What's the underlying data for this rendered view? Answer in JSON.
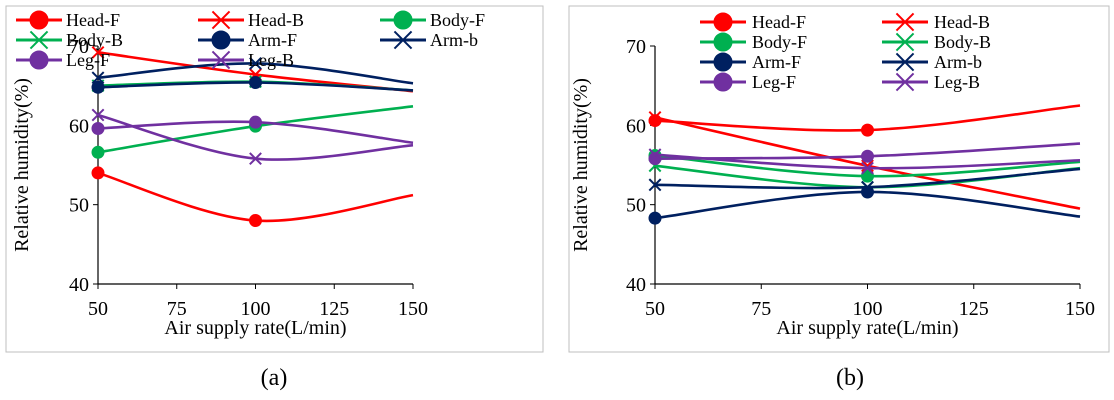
{
  "colors": {
    "Head-F": "#ff0000",
    "Head-B": "#ff0000",
    "Body-F": "#00b050",
    "Body-B": "#00b050",
    "Arm-F": "#002060",
    "Arm-b": "#002060",
    "Leg-F": "#7030a0",
    "Leg-B": "#7030a0"
  },
  "chart_data": [
    {
      "type": "line",
      "panel_label": "(a)",
      "xlabel": "Air supply rate(L/min)",
      "ylabel": "Relative humidity(%)",
      "x": [
        50,
        100,
        150
      ],
      "xlim": [
        50,
        150
      ],
      "ylim": [
        40,
        70
      ],
      "xticks": [
        "50",
        "75",
        "100",
        "125",
        "150"
      ],
      "yticks": [
        "40",
        "50",
        "60",
        "70"
      ],
      "grid": false,
      "legend_position": "top",
      "series": [
        {
          "name": "Head-F",
          "marker": "circle",
          "values": [
            54.0,
            48.0,
            51.2
          ]
        },
        {
          "name": "Head-B",
          "marker": "cross",
          "values": [
            69.2,
            66.4,
            64.3
          ]
        },
        {
          "name": "Body-F",
          "marker": "circle",
          "values": [
            56.6,
            59.9,
            62.4
          ]
        },
        {
          "name": "Body-B",
          "marker": "cross",
          "values": [
            65.0,
            65.5,
            64.4
          ]
        },
        {
          "name": "Arm-F",
          "marker": "circle",
          "values": [
            64.8,
            65.4,
            64.4
          ]
        },
        {
          "name": "Arm-b",
          "marker": "cross",
          "values": [
            66.0,
            67.8,
            65.3
          ]
        },
        {
          "name": "Leg-F",
          "marker": "circle",
          "values": [
            59.6,
            60.4,
            57.8
          ]
        },
        {
          "name": "Leg-B",
          "marker": "cross",
          "values": [
            61.3,
            55.8,
            57.5
          ]
        }
      ]
    },
    {
      "type": "line",
      "panel_label": "(b)",
      "xlabel": "Air supply rate(L/min)",
      "ylabel": "Relative humidity(%)",
      "x": [
        50,
        100,
        150
      ],
      "xlim": [
        50,
        150
      ],
      "ylim": [
        40,
        70
      ],
      "xticks": [
        "50",
        "75",
        "100",
        "125",
        "150"
      ],
      "yticks": [
        "40",
        "50",
        "60",
        "70"
      ],
      "grid": false,
      "legend_position": "top",
      "series": [
        {
          "name": "Head-F",
          "marker": "circle",
          "values": [
            60.6,
            59.4,
            62.5
          ]
        },
        {
          "name": "Head-B",
          "marker": "cross",
          "values": [
            61.0,
            54.9,
            49.5
          ]
        },
        {
          "name": "Body-F",
          "marker": "circle",
          "values": [
            56.2,
            53.6,
            55.4
          ]
        },
        {
          "name": "Body-B",
          "marker": "cross",
          "values": [
            54.9,
            52.2,
            54.6
          ]
        },
        {
          "name": "Arm-F",
          "marker": "circle",
          "values": [
            48.3,
            51.6,
            48.5
          ]
        },
        {
          "name": "Arm-b",
          "marker": "cross",
          "values": [
            52.5,
            52.2,
            54.5
          ]
        },
        {
          "name": "Leg-F",
          "marker": "circle",
          "values": [
            55.8,
            56.1,
            57.7
          ]
        },
        {
          "name": "Leg-B",
          "marker": "cross",
          "values": [
            56.3,
            54.6,
            55.6
          ]
        }
      ]
    }
  ]
}
